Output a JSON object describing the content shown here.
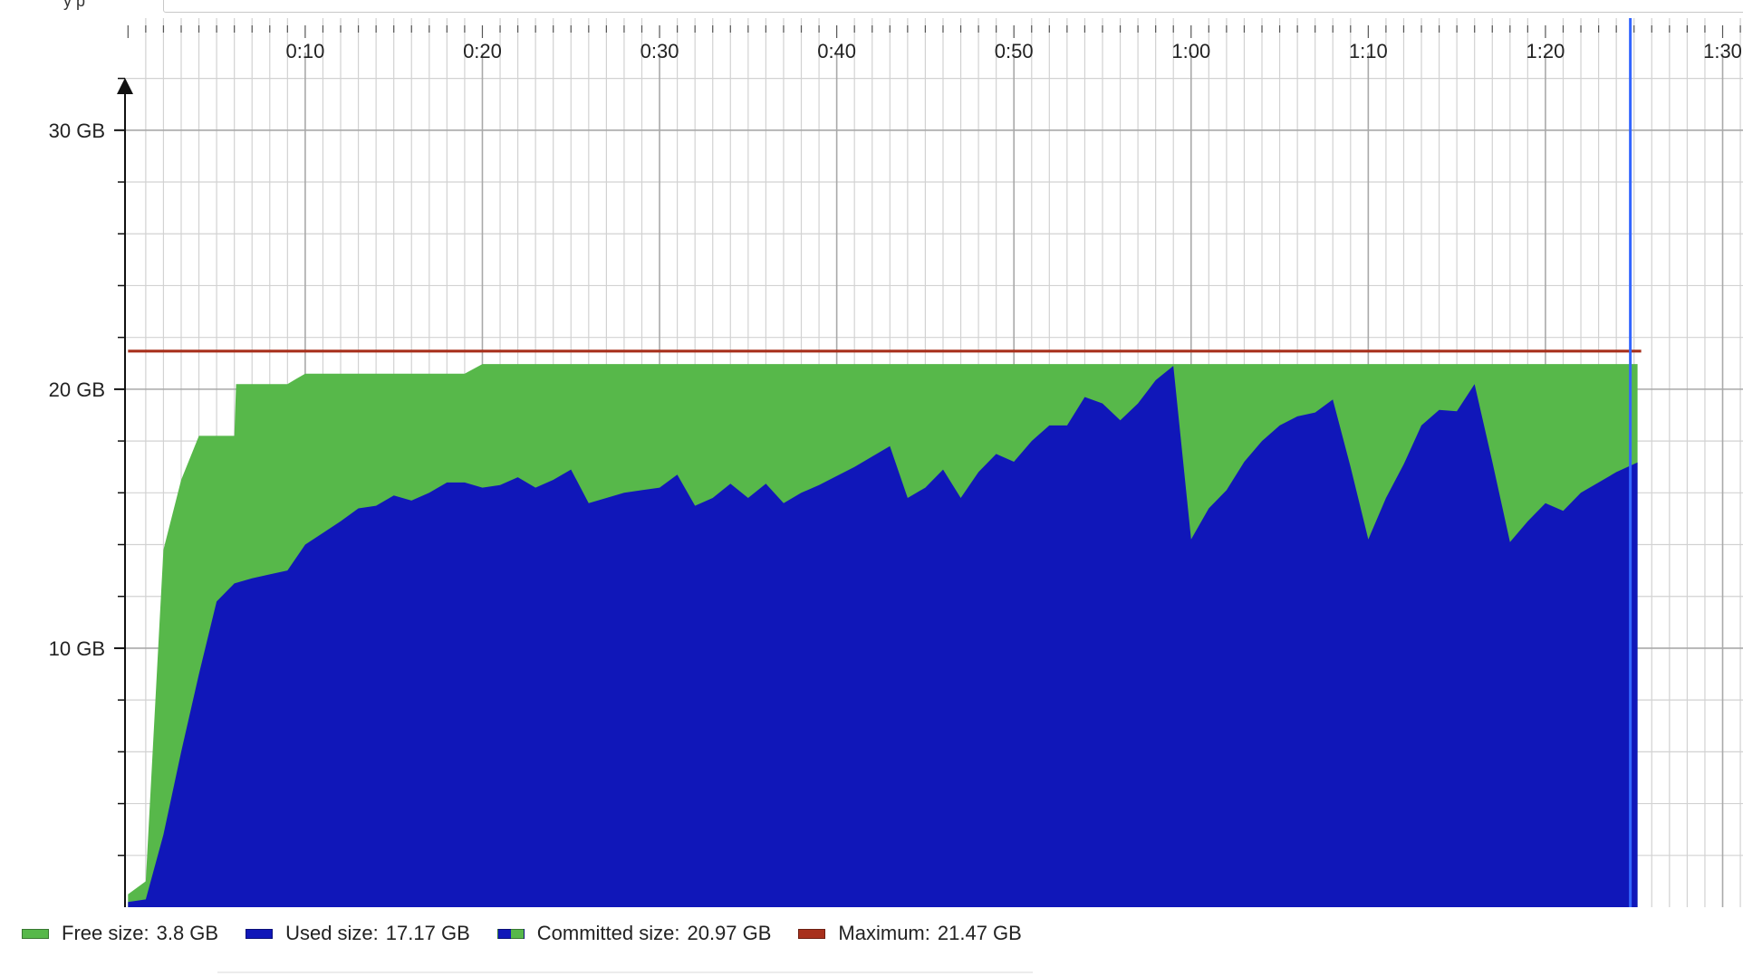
{
  "toolbar": {
    "label": "y p",
    "field_value": ""
  },
  "chart_data": {
    "type": "area",
    "x_unit": "minutes",
    "y_unit": "GB",
    "xlim": [
      -0.17,
      91.15
    ],
    "ylim": [
      0,
      33
    ],
    "x_ticks": [
      10,
      20,
      30,
      40,
      50,
      60,
      70,
      80,
      90
    ],
    "x_tick_labels": [
      "0:10",
      "0:20",
      "0:30",
      "0:40",
      "0:50",
      "1:00",
      "1:10",
      "1:20",
      "1:30"
    ],
    "x_minor_step": 1,
    "y_ticks": [
      10,
      20,
      30
    ],
    "y_tick_labels": [
      "10 GB",
      "20 GB",
      "30 GB"
    ],
    "y_minor_step": 2,
    "grid": true,
    "cursor_x": 85.2,
    "colors": {
      "free": "#57b84a",
      "used": "#1017b9",
      "maximum": "#a8301c",
      "cursor": "#3366ff",
      "grid_major": "#a9a9a9",
      "grid_minor": "#d2d2d2"
    },
    "series": [
      {
        "name": "Committed size",
        "x": [
          0,
          1,
          2,
          3,
          4,
          5,
          5.1,
          6,
          6.1,
          7,
          8,
          8.5,
          9,
          9.5,
          10,
          11,
          12,
          13,
          14,
          15,
          16,
          17,
          18,
          19,
          20,
          20.1,
          85.2
        ],
        "values": [
          0.5,
          1.0,
          13.8,
          16.5,
          18.2,
          18.2,
          18.2,
          18.2,
          20.2,
          20.2,
          20.2,
          20.2,
          20.2,
          20.4,
          20.6,
          20.6,
          20.6,
          20.6,
          20.6,
          20.6,
          20.6,
          20.6,
          20.6,
          20.6,
          20.97,
          20.97,
          20.97
        ]
      },
      {
        "name": "Used size",
        "x": [
          0,
          1,
          2,
          3,
          4,
          5,
          6,
          7,
          8,
          9,
          10,
          11,
          12,
          13,
          14,
          15,
          16,
          17,
          18,
          19,
          20,
          21,
          22,
          23,
          24,
          25,
          26,
          27,
          28,
          29,
          30,
          31,
          32,
          33,
          34,
          35,
          36,
          37,
          38,
          39,
          40,
          41,
          42,
          43,
          44,
          45,
          46,
          47,
          48,
          49,
          50,
          51,
          52,
          53,
          54,
          55,
          56,
          57,
          58,
          59,
          60,
          61,
          62,
          63,
          64,
          65,
          66,
          67,
          68,
          69,
          70,
          71,
          72,
          73,
          74,
          75,
          76,
          77,
          78,
          79,
          80,
          81,
          82,
          83,
          84,
          85.2
        ],
        "values": [
          0.2,
          0.3,
          2.8,
          6.0,
          9.0,
          11.8,
          12.5,
          12.7,
          12.85,
          13.0,
          14.0,
          14.45,
          14.9,
          15.4,
          15.5,
          15.9,
          15.7,
          16.0,
          16.4,
          16.4,
          16.2,
          16.3,
          16.6,
          16.2,
          16.5,
          16.9,
          15.6,
          15.8,
          16.0,
          16.1,
          16.2,
          16.7,
          15.5,
          15.8,
          16.35,
          15.8,
          16.35,
          15.6,
          16.0,
          16.3,
          16.65,
          17.0,
          17.4,
          17.8,
          15.8,
          16.2,
          16.9,
          15.8,
          16.8,
          17.5,
          17.2,
          18.0,
          18.6,
          18.6,
          19.7,
          19.45,
          18.8,
          19.45,
          20.35,
          20.9,
          14.2,
          15.4,
          16.1,
          17.2,
          18.0,
          18.6,
          18.95,
          19.1,
          19.6,
          17.0,
          14.2,
          15.8,
          17.1,
          18.6,
          19.2,
          19.15,
          20.2,
          17.2,
          14.1,
          14.9,
          15.6,
          15.3,
          16.0,
          16.4,
          16.8,
          17.17
        ]
      },
      {
        "name": "Maximum",
        "x": [
          0,
          85.2
        ],
        "values": [
          21.47,
          21.47
        ]
      }
    ],
    "legend": [
      {
        "key": "free",
        "label": "Free size:",
        "value": "3.8 GB"
      },
      {
        "key": "used",
        "label": "Used size:",
        "value": "17.17 GB"
      },
      {
        "key": "committed",
        "label": "Committed size:",
        "value": "20.97 GB"
      },
      {
        "key": "maximum",
        "label": "Maximum:",
        "value": "21.47 GB"
      }
    ]
  }
}
